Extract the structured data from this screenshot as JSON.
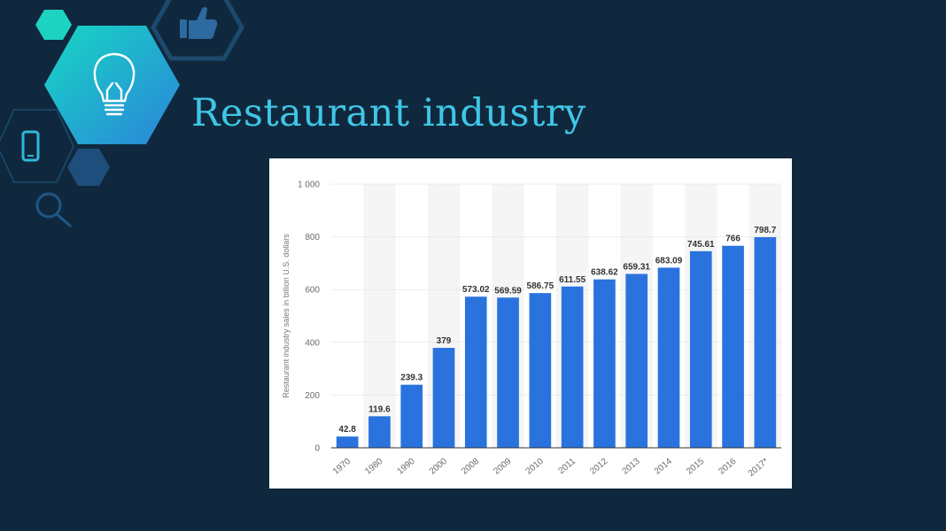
{
  "slide": {
    "title": "Restaurant industry",
    "background": "#10283d",
    "accent": "#3fc6e6",
    "icons": [
      "lightbulb-icon",
      "thumbs-up-icon",
      "smartphone-icon",
      "magnifier-icon"
    ]
  },
  "chart_data": {
    "type": "bar",
    "title": "",
    "xlabel": "",
    "ylabel": "Restaurant industry sales in billion U.S. dollars",
    "categories": [
      "1970",
      "1980",
      "1990",
      "2000",
      "2008",
      "2009",
      "2010",
      "2011",
      "2012",
      "2013",
      "2014",
      "2015",
      "2016",
      "2017*"
    ],
    "values": [
      42.8,
      119.6,
      239.3,
      379,
      573.02,
      569.59,
      586.75,
      611.55,
      638.62,
      659.31,
      683.09,
      745.61,
      766,
      798.7
    ],
    "value_labels": [
      "42.8",
      "119.6",
      "239.3",
      "379",
      "573.02",
      "569.59",
      "586.75",
      "611.55",
      "638.62",
      "659.31",
      "683.09",
      "745.61",
      "766",
      "798.7"
    ],
    "yticks": [
      0,
      200,
      400,
      600,
      800,
      1000
    ],
    "ytick_labels": [
      "0",
      "200",
      "400",
      "600",
      "800",
      "1 000"
    ],
    "ylim": [
      0,
      1000
    ],
    "grid": true,
    "bar_color": "#2a73de",
    "legend": "none"
  }
}
